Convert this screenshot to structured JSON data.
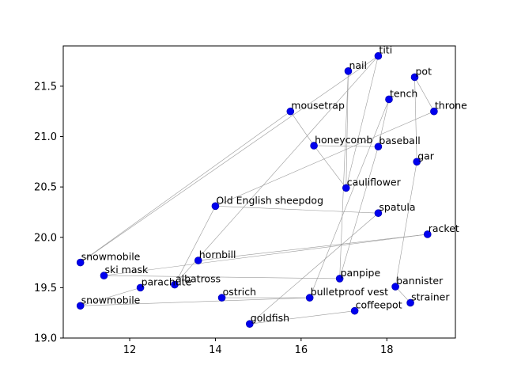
{
  "chart_data": {
    "type": "scatter",
    "title": "",
    "xlabel": "",
    "ylabel": "",
    "xlim": [
      10.45,
      19.6
    ],
    "ylim": [
      19.0,
      21.9
    ],
    "xticks": [
      12,
      14,
      16,
      18
    ],
    "yticks": [
      19.0,
      19.5,
      20.0,
      20.5,
      21.0,
      21.5
    ],
    "ytick_labels": [
      "19.0",
      "19.5",
      "20.0",
      "20.5",
      "21.0",
      "21.5"
    ],
    "grid": false,
    "point_color": "#0000ee",
    "edge_color": "#9a9a9a",
    "points": [
      {
        "label": "titi",
        "x": 17.8,
        "y": 21.8
      },
      {
        "label": "nail",
        "x": 17.1,
        "y": 21.65
      },
      {
        "label": "pot",
        "x": 18.65,
        "y": 21.59
      },
      {
        "label": "tench",
        "x": 18.05,
        "y": 21.37
      },
      {
        "label": "mousetrap",
        "x": 15.75,
        "y": 21.25
      },
      {
        "label": "throne",
        "x": 19.1,
        "y": 21.25
      },
      {
        "label": "honeycomb",
        "x": 16.3,
        "y": 20.91
      },
      {
        "label": "baseball",
        "x": 17.8,
        "y": 20.9
      },
      {
        "label": "gar",
        "x": 18.7,
        "y": 20.75
      },
      {
        "label": "cauliflower",
        "x": 17.05,
        "y": 20.49
      },
      {
        "label": "Old English sheepdog",
        "x": 14.0,
        "y": 20.31
      },
      {
        "label": "spatula",
        "x": 17.8,
        "y": 20.24
      },
      {
        "label": "racket",
        "x": 18.95,
        "y": 20.03
      },
      {
        "label": "snowmobile",
        "x": 10.85,
        "y": 19.75
      },
      {
        "label": "hornbill",
        "x": 13.6,
        "y": 19.77
      },
      {
        "label": "ski mask",
        "x": 11.4,
        "y": 19.62
      },
      {
        "label": "panpipe",
        "x": 16.9,
        "y": 19.59
      },
      {
        "label": "albatross",
        "x": 13.05,
        "y": 19.53
      },
      {
        "label": "parachute",
        "x": 12.25,
        "y": 19.5
      },
      {
        "label": "bannister",
        "x": 18.2,
        "y": 19.51
      },
      {
        "label": "ostrich",
        "x": 14.15,
        "y": 19.4
      },
      {
        "label": "bulletproof vest",
        "x": 16.2,
        "y": 19.4
      },
      {
        "label": "snowmobile",
        "x": 10.85,
        "y": 19.32
      },
      {
        "label": "strainer",
        "x": 18.55,
        "y": 19.35
      },
      {
        "label": "coffeepot",
        "x": 17.25,
        "y": 19.27
      },
      {
        "label": "goldfish",
        "x": 14.8,
        "y": 19.14
      }
    ],
    "edges": [
      [
        "titi",
        "cauliflower"
      ],
      [
        "titi",
        "albatross"
      ],
      [
        "titi",
        "snowmobile"
      ],
      [
        "nail",
        "cauliflower"
      ],
      [
        "nail",
        "panpipe"
      ],
      [
        "pot",
        "throne"
      ],
      [
        "pot",
        "gar"
      ],
      [
        "tench",
        "baseball"
      ],
      [
        "tench",
        "bulletproof vest"
      ],
      [
        "throne",
        "Old English sheepdog"
      ],
      [
        "mousetrap",
        "snowmobile"
      ],
      [
        "mousetrap",
        "honeycomb"
      ],
      [
        "honeycomb",
        "cauliflower"
      ],
      [
        "honeycomb",
        "baseball"
      ],
      [
        "baseball",
        "panpipe"
      ],
      [
        "gar",
        "bannister"
      ],
      [
        "Old English sheepdog",
        "spatula"
      ],
      [
        "Old English sheepdog",
        "albatross"
      ],
      [
        "spatula",
        "goldfish"
      ],
      [
        "racket",
        "hornbill"
      ],
      [
        "racket",
        "ski mask"
      ],
      [
        "ski mask",
        "panpipe"
      ],
      [
        "parachute",
        "snowmobile"
      ],
      [
        "ostrich",
        "bulletproof vest"
      ],
      [
        "bulletproof vest",
        "snowmobile"
      ],
      [
        "strainer",
        "bannister"
      ],
      [
        "coffeepot",
        "goldfish"
      ]
    ]
  }
}
